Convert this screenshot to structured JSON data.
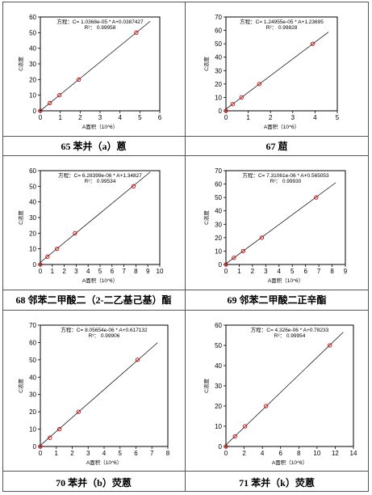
{
  "chart_data": [
    {
      "type": "scatter",
      "equation": "方程：C= 1.0368e-05 * A+0.0387427",
      "r2": "R²： 0.99958",
      "xlabel": "A面积（10^6）",
      "ylabel": "C浓度",
      "xlim": [
        0,
        6
      ],
      "ylim": [
        0,
        60
      ],
      "xticks": [
        "0",
        "1",
        "2",
        "3",
        "4",
        "5",
        "6"
      ],
      "yticks": [
        "0",
        "10",
        "20",
        "30",
        "40",
        "50",
        "60"
      ],
      "points": [
        [
          0.0,
          0.0
        ],
        [
          0.48,
          5
        ],
        [
          0.96,
          10
        ],
        [
          1.93,
          20
        ],
        [
          4.82,
          50
        ]
      ],
      "fit": {
        "slope": 10.368,
        "intercept": 0.0387
      },
      "caption": "65 苯并（a）蒽"
    },
    {
      "type": "scatter",
      "equation": "方程：C= 1.24955e-05 * A+1.23695",
      "r2": "R²： 0.99828",
      "xlabel": "A面积（10^6）",
      "ylabel": "C浓度",
      "xlim": [
        0,
        5
      ],
      "ylim": [
        0,
        70
      ],
      "xticks": [
        "0",
        "1",
        "2",
        "3",
        "4",
        "5"
      ],
      "yticks": [
        "0",
        "10",
        "20",
        "30",
        "40",
        "50",
        "60",
        "70"
      ],
      "points": [
        [
          0.0,
          0.0
        ],
        [
          0.3,
          5
        ],
        [
          0.7,
          10
        ],
        [
          1.5,
          20
        ],
        [
          3.9,
          50
        ]
      ],
      "fit": {
        "slope": 12.4955,
        "intercept": 1.237
      },
      "caption": "67 䓛"
    },
    {
      "type": "scatter",
      "equation": "方程：C= 6.28399e-06 * A+1.34827",
      "r2": "R²： 0.99534",
      "xlabel": "A面积（10^6）",
      "ylabel": "C浓度",
      "xlim": [
        0,
        10
      ],
      "ylim": [
        0,
        60
      ],
      "xticks": [
        "0",
        "1",
        "2",
        "3",
        "4",
        "5",
        "6",
        "7",
        "8",
        "9",
        "10"
      ],
      "yticks": [
        "0",
        "10",
        "20",
        "30",
        "40",
        "50",
        "60"
      ],
      "points": [
        [
          0.0,
          0.0
        ],
        [
          0.6,
          5
        ],
        [
          1.4,
          10
        ],
        [
          2.9,
          20
        ],
        [
          7.8,
          50
        ]
      ],
      "fit": {
        "slope": 6.28399,
        "intercept": 1.348
      },
      "caption": "68 邻苯二甲酸二（2-二乙基己基）酯"
    },
    {
      "type": "scatter",
      "equation": "方程：C= 7.31061e-06 * A+0.565053",
      "r2": "R²： 0.99930",
      "xlabel": "A面积（10^6）",
      "ylabel": "C浓度",
      "xlim": [
        0,
        9
      ],
      "ylim": [
        0,
        70
      ],
      "xticks": [
        "0",
        "1",
        "2",
        "3",
        "4",
        "5",
        "6",
        "7",
        "8",
        "9"
      ],
      "yticks": [
        "0",
        "10",
        "20",
        "30",
        "40",
        "50",
        "60",
        "70"
      ],
      "points": [
        [
          0.0,
          0.0
        ],
        [
          0.6,
          5
        ],
        [
          1.3,
          10
        ],
        [
          2.7,
          20
        ],
        [
          6.8,
          50
        ]
      ],
      "fit": {
        "slope": 7.31061,
        "intercept": 0.565
      },
      "caption": "69 邻苯二甲酸二正辛酯"
    },
    {
      "type": "scatter",
      "equation": "方程：C= 8.05654e-06 * A+0.617132",
      "r2": "R²： 0.99906",
      "xlabel": "A面积（10^6）",
      "ylabel": "C浓度",
      "xlim": [
        0,
        8
      ],
      "ylim": [
        0,
        70
      ],
      "xticks": [
        "0",
        "1",
        "2",
        "3",
        "4",
        "5",
        "6",
        "7",
        "8"
      ],
      "yticks": [
        "0",
        "10",
        "20",
        "30",
        "40",
        "50",
        "60",
        "70"
      ],
      "points": [
        [
          0.0,
          0.0
        ],
        [
          0.6,
          5
        ],
        [
          1.2,
          10
        ],
        [
          2.4,
          20
        ],
        [
          6.1,
          50
        ]
      ],
      "fit": {
        "slope": 8.05654,
        "intercept": 0.617
      },
      "caption": "70 苯并（b）荧蒽"
    },
    {
      "type": "scatter",
      "equation": "方程：C= 4.326e-06 * A+0.78233",
      "r2": "R²： 0.99954",
      "xlabel": "A面积（10^6）",
      "ylabel": "C浓度",
      "xlim": [
        0,
        14
      ],
      "ylim": [
        0,
        60
      ],
      "xticks": [
        "0",
        "2",
        "4",
        "6",
        "8",
        "10",
        "12",
        "14"
      ],
      "yticks": [
        "0",
        "10",
        "20",
        "30",
        "40",
        "50",
        "60"
      ],
      "points": [
        [
          0.0,
          0.0
        ],
        [
          1.0,
          5
        ],
        [
          2.1,
          10
        ],
        [
          4.4,
          20
        ],
        [
          11.4,
          50
        ]
      ],
      "fit": {
        "slope": 4.326,
        "intercept": 0.782
      },
      "caption": "71 苯并（k）荧蒽"
    }
  ]
}
